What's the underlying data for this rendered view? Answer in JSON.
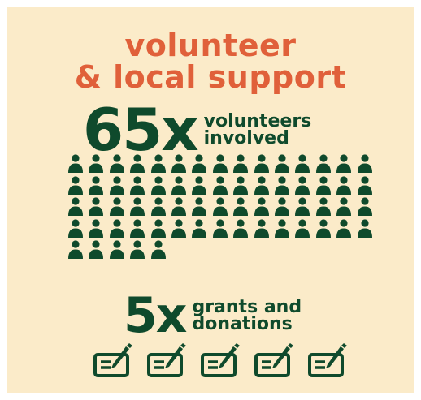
{
  "title": {
    "line1": "volunteer",
    "line2": "& local support"
  },
  "volunteers": {
    "count_label": "65x",
    "desc_line1": "volunteers",
    "desc_line2": "involved",
    "count": 65,
    "icon": "person-icon"
  },
  "grants": {
    "count_label": "5x",
    "desc_line1": "grants and",
    "desc_line2": "donations",
    "count": 5,
    "icon": "cheque-signing-icon"
  },
  "colors": {
    "background": "#fbebc9",
    "accent": "#e0603a",
    "primary": "#0f4a2c"
  }
}
